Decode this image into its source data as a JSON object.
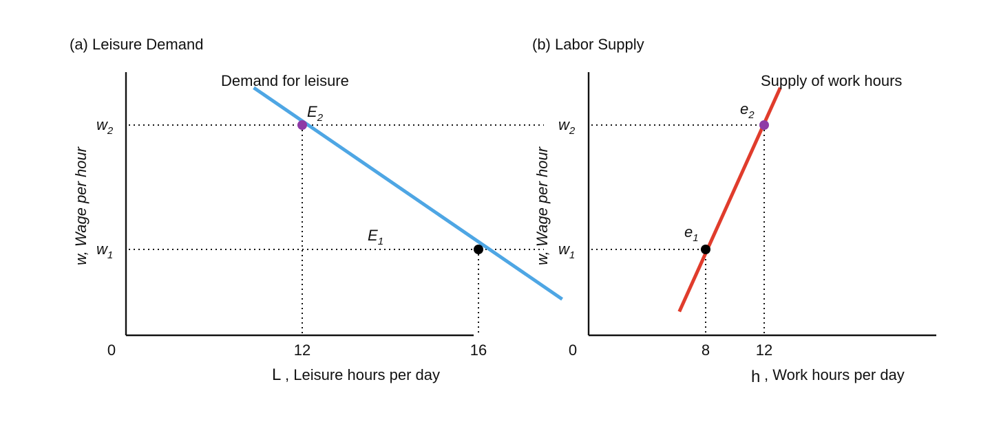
{
  "chart_data": [
    {
      "type": "line",
      "title": "(a) Leisure Demand",
      "ylabel": "w, Wage per hour",
      "xlabel_symbol": "L",
      "xlabel_text": ", Leisure hours per day",
      "origin_label": "0",
      "x_ticks": [
        "12",
        "16"
      ],
      "y_ticks": [
        {
          "sym": "w",
          "sub": "2"
        },
        {
          "sym": "w",
          "sub": "1"
        }
      ],
      "series": [
        {
          "name": "Demand for leisure",
          "color": "#4ea6e4",
          "points": [
            {
              "x": 10.9,
              "y": 2.3
            },
            {
              "x": 17.9,
              "y": 0.6
            }
          ]
        }
      ],
      "points": [
        {
          "sym": "E",
          "sub": "2",
          "x": 12,
          "y": 2,
          "color": "#8e3aa6"
        },
        {
          "sym": "E",
          "sub": "1",
          "x": 16,
          "y": 1,
          "color": "#000000"
        }
      ]
    },
    {
      "type": "line",
      "title": "(b) Labor Supply",
      "ylabel": "w, Wage per hour",
      "xlabel_symbol": "h",
      "xlabel_text": ", Work hours per day",
      "origin_label": "0",
      "x_ticks": [
        "8",
        "12"
      ],
      "y_ticks": [
        {
          "sym": "w",
          "sub": "2"
        },
        {
          "sym": "w",
          "sub": "1"
        }
      ],
      "series": [
        {
          "name": "Supply of work hours",
          "color": "#e03c2c",
          "points": [
            {
              "x": 6.2,
              "y": 0.5
            },
            {
              "x": 13.1,
              "y": 2.3
            }
          ]
        }
      ],
      "points": [
        {
          "sym": "e",
          "sub": "2",
          "x": 12,
          "y": 2,
          "color": "#8e3aa6"
        },
        {
          "sym": "e",
          "sub": "1",
          "x": 8,
          "y": 1,
          "color": "#000000"
        }
      ]
    }
  ]
}
